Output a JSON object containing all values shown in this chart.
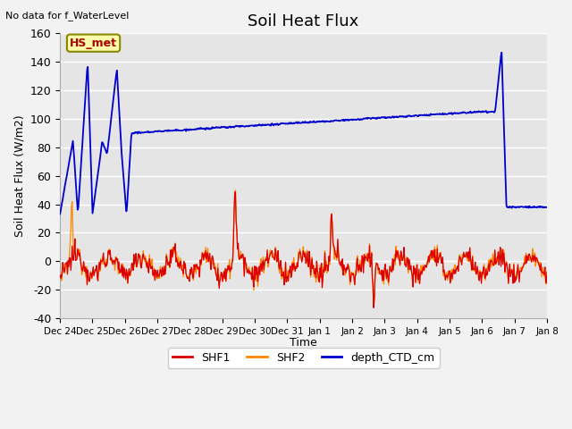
{
  "title": "Soil Heat Flux",
  "top_left_text": "No data for f_WaterLevel",
  "ylabel": "Soil Heat Flux (W/m2)",
  "xlabel": "Time",
  "annotation_box": "HS_met",
  "ylim": [
    -40,
    160
  ],
  "yticks": [
    -40,
    -20,
    0,
    20,
    40,
    60,
    80,
    100,
    120,
    140,
    160
  ],
  "background_color": "#e8e8e8",
  "plot_bg_color": "#e5e5e5",
  "shf1_color": "#dd0000",
  "shf2_color": "#ff8800",
  "depth_color": "#0000cc",
  "legend_labels": [
    "SHF1",
    "SHF2",
    "depth_CTD_cm"
  ],
  "tick_labels": [
    "Dec 24",
    "Dec 25",
    "Dec 26",
    "Dec 27",
    "Dec 28",
    "Dec 29",
    "Dec 30",
    "Dec 31",
    "Jan 1",
    "Jan 2",
    "Jan 3",
    "Jan 4",
    "Jan 5",
    "Jan 6",
    "Jan 7",
    "Jan 8"
  ]
}
